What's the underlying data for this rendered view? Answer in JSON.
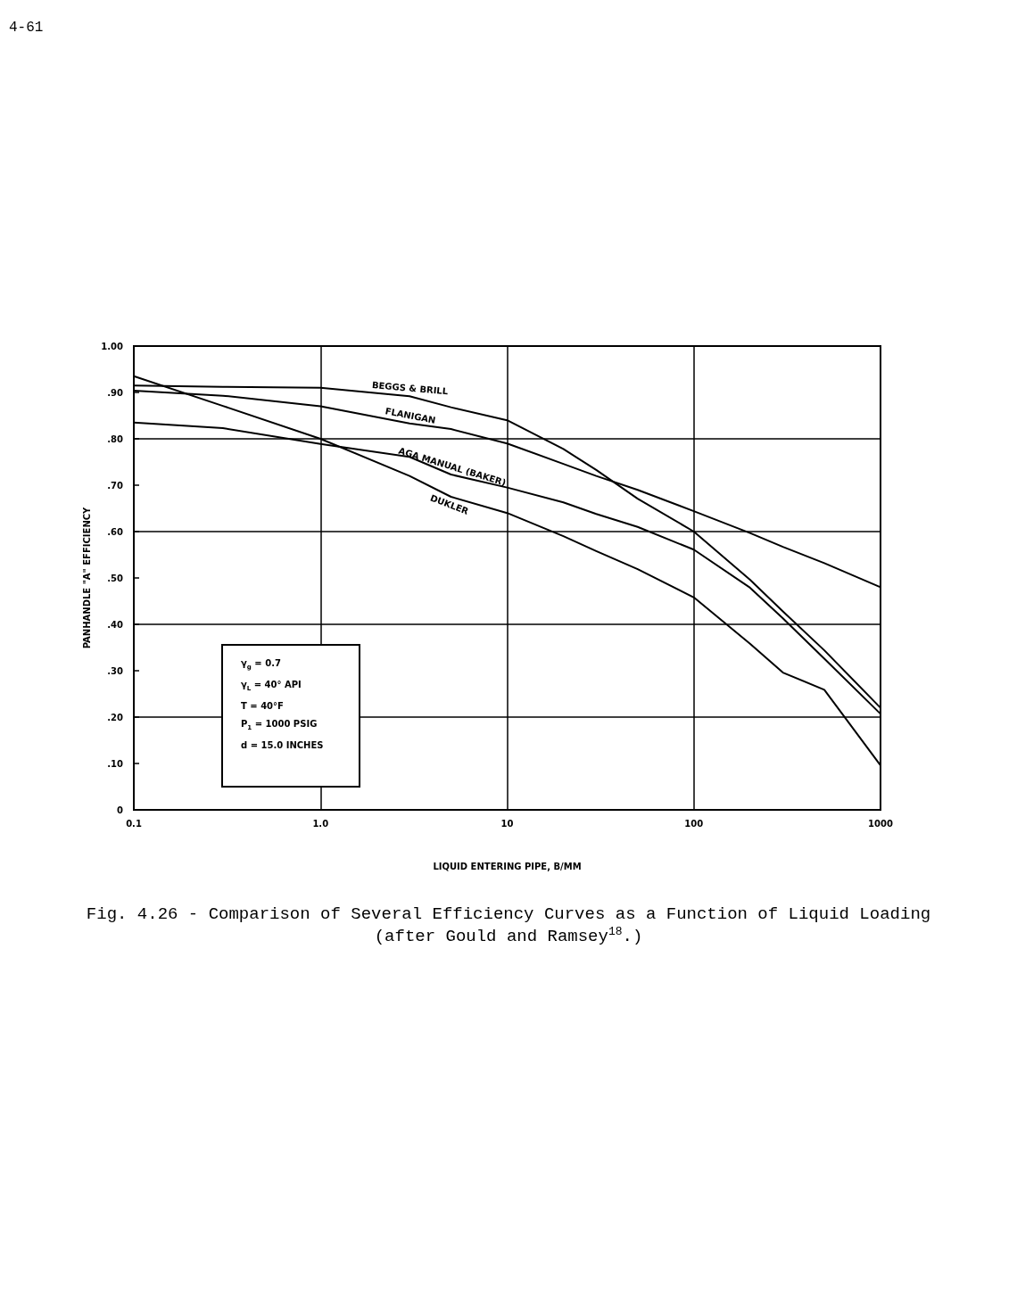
{
  "chart_data": {
    "type": "line",
    "title": "Fig. 4.26 - Comparison of Several Efficiency Curves as a Function of Liquid Loading",
    "subtitle": "(after Gould and Ramsey$^{18}$.)",
    "xlabel": "LIQUID ENTERING PIPE, B/MM",
    "ylabel": "PANHANDLE \"A\" EFFICIENCY",
    "annotations": [
      "4-61",
      "γ$_{g}$ = 0.7",
      "γ$_{L}$ = 40° API",
      "T = 40°F",
      "P$_{1}$ = 1000 PSIG",
      "d = 15.0 INCHES"
    ],
    "x": [
      0.1,
      0.3,
      1,
      3,
      5,
      10,
      20,
      30,
      50,
      100,
      200,
      300,
      500,
      1000
    ],
    "series": [
      {
        "name": "BEGGS & BRILL",
        "color": "#000000",
        "values": [
          0.915,
          0.912,
          0.91,
          0.892,
          0.868,
          0.84,
          0.778,
          0.733,
          0.671,
          0.6,
          0.496,
          0.428,
          0.344,
          0.22
        ]
      },
      {
        "name": "FLANIGAN",
        "color": "#000000",
        "values": [
          0.904,
          0.893,
          0.87,
          0.833,
          0.821,
          0.79,
          0.746,
          0.72,
          0.69,
          0.644,
          0.597,
          0.567,
          0.532,
          0.48
        ]
      },
      {
        "name": "AGA MANUAL (BAKER)",
        "color": "#000000",
        "values": [
          0.835,
          0.823,
          0.789,
          0.761,
          0.723,
          0.695,
          0.663,
          0.638,
          0.61,
          0.561,
          0.479,
          0.413,
          0.326,
          0.207
        ]
      },
      {
        "name": "DUKLER",
        "color": "#000000",
        "values": [
          0.935,
          0.871,
          0.8,
          0.72,
          0.675,
          0.64,
          0.59,
          0.558,
          0.519,
          0.458,
          0.358,
          0.296,
          0.259,
          0.096
        ]
      }
    ],
    "log": "x",
    "xlim": [
      0.1,
      1000
    ],
    "xticks": [
      0.1,
      {
        "value": 1,
        "label": "1.0"
      },
      10,
      100,
      1000
    ],
    "ylim": [
      0,
      1
    ],
    "yticks": [
      0,
      {
        "value": 0.1,
        "label": ".10"
      },
      {
        "value": 0.2,
        "label": ".20"
      },
      {
        "value": 0.3,
        "label": ".30"
      },
      {
        "value": 0.4,
        "label": ".40"
      },
      {
        "value": 0.5,
        "label": ".50"
      },
      {
        "value": 0.6,
        "label": ".60"
      },
      {
        "value": 0.7,
        "label": ".70"
      },
      {
        "value": 0.8,
        "label": ".80"
      },
      {
        "value": 0.9,
        "label": ".90"
      },
      {
        "value": 1,
        "label": "1.00"
      }
    ],
    "ref_lines": [
      {
        "axis": "y",
        "value": 0.2,
        "color": "#000000"
      },
      {
        "axis": "y",
        "value": 0.4,
        "color": "#000000"
      },
      {
        "axis": "y",
        "value": 0.6,
        "color": "#000000"
      },
      {
        "axis": "y",
        "value": 0.8,
        "color": "#000000"
      }
    ],
    "grid": "x",
    "marker": "none",
    "line_style": "solid"
  }
}
